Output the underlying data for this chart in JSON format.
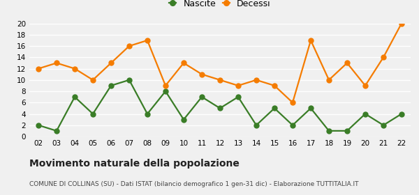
{
  "years": [
    "02",
    "03",
    "04",
    "05",
    "06",
    "07",
    "08",
    "09",
    "10",
    "11",
    "12",
    "13",
    "14",
    "15",
    "16",
    "17",
    "18",
    "19",
    "20",
    "21",
    "22"
  ],
  "nascite": [
    2,
    1,
    7,
    4,
    9,
    10,
    4,
    8,
    3,
    7,
    5,
    7,
    2,
    5,
    2,
    5,
    1,
    1,
    4,
    2,
    4
  ],
  "decessi": [
    12,
    13,
    12,
    10,
    13,
    16,
    17,
    9,
    13,
    11,
    10,
    9,
    10,
    9,
    6,
    17,
    10,
    13,
    9,
    14,
    20
  ],
  "nascite_color": "#3a7d27",
  "decessi_color": "#f57c00",
  "title": "Movimento naturale della popolazione",
  "subtitle": "COMUNE DI COLLINAS (SU) - Dati ISTAT (bilancio demografico 1 gen-31 dic) - Elaborazione TUTTITALIA.IT",
  "legend_nascite": "Nascite",
  "legend_decessi": "Decessi",
  "ylim": [
    0,
    20
  ],
  "yticks": [
    0,
    2,
    4,
    6,
    8,
    10,
    12,
    14,
    16,
    18,
    20
  ],
  "bg_color": "#f0f0f0",
  "grid_color": "#ffffff",
  "marker_size": 5,
  "line_width": 1.6
}
